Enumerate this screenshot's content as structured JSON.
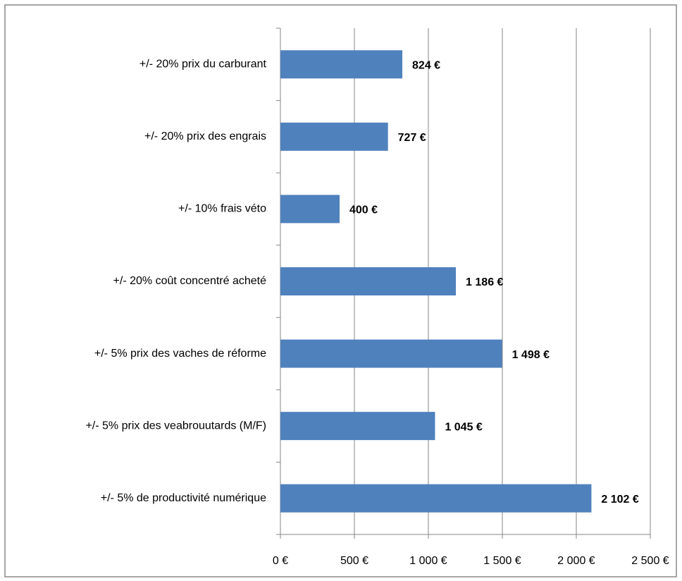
{
  "chart_data": {
    "type": "bar",
    "orientation": "horizontal",
    "categories": [
      "+/- 20% prix du carburant",
      "+/- 20% prix des engrais",
      "+/- 10% frais véto",
      "+/- 20% coût concentré acheté",
      "+/- 5% prix des vaches de réforme",
      "+/- 5% prix des veabrouutards (M/F)",
      "+/- 5% de productivité numérique"
    ],
    "values": [
      824,
      727,
      400,
      1186,
      1498,
      1045,
      2102
    ],
    "value_labels": [
      "824 €",
      "727 €",
      "400 €",
      "1 186 €",
      "1 498 €",
      "1 045 €",
      "2 102 €"
    ],
    "color": "#4f81bd",
    "xlim": [
      0,
      2500
    ],
    "xticks": [
      {
        "value": 0,
        "label": "0 €"
      },
      {
        "value": 500,
        "label": "500 €"
      },
      {
        "value": 1000,
        "label": "1 000 €"
      },
      {
        "value": 1500,
        "label": "1 500 €"
      },
      {
        "value": 2000,
        "label": "2 000 €"
      },
      {
        "value": 2500,
        "label": "2 500 €"
      }
    ],
    "grid": true
  }
}
